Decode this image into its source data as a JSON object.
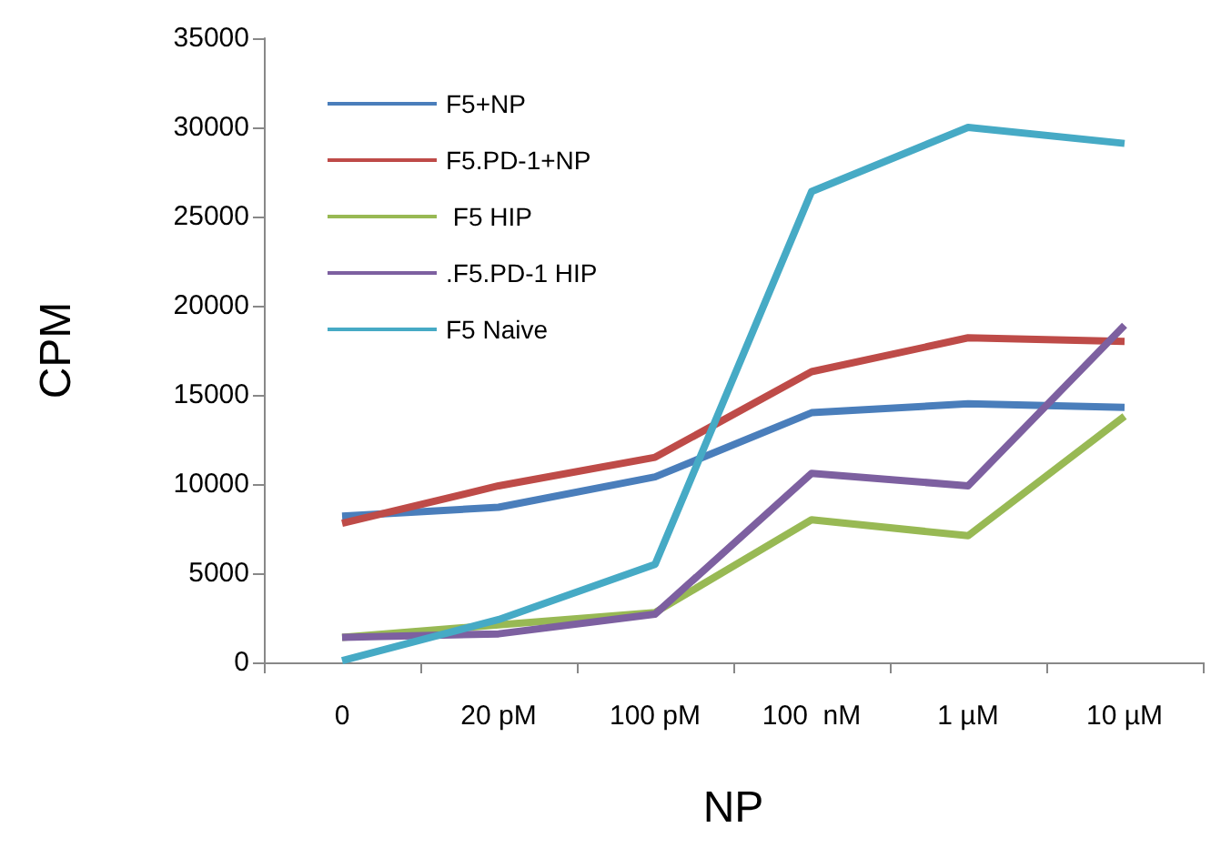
{
  "chart_data": {
    "type": "line",
    "xlabel": "NP",
    "ylabel": "CPM",
    "categories": [
      "0",
      "20 pM",
      "100 pM",
      "100  nM",
      "1 µM",
      "10 µM"
    ],
    "series": [
      {
        "name": "F5+NP",
        "color": "#4a7ebb",
        "values": [
          8200,
          8700,
          10400,
          14000,
          14500,
          14300
        ]
      },
      {
        "name": "F5.PD-1+NP",
        "color": "#be4b48",
        "values": [
          7800,
          9900,
          11500,
          16300,
          18200,
          18000
        ]
      },
      {
        "name": " F5 HIP",
        "color": "#98b954",
        "values": [
          1400,
          2100,
          2800,
          8000,
          7100,
          13800
        ]
      },
      {
        "name": ".F5.PD-1 HIP",
        "color": "#7d60a0",
        "values": [
          1400,
          1600,
          2700,
          10600,
          9900,
          18900
        ]
      },
      {
        "name": "F5 Naive",
        "color": "#46aac5",
        "values": [
          100,
          2400,
          5500,
          26400,
          30000,
          29100
        ]
      }
    ],
    "ylim": [
      0,
      35000
    ],
    "yticks": [
      0,
      5000,
      10000,
      15000,
      20000,
      25000,
      30000,
      35000
    ],
    "grid": false,
    "legend": "top left",
    "marker": "none",
    "line_style": "solid"
  }
}
